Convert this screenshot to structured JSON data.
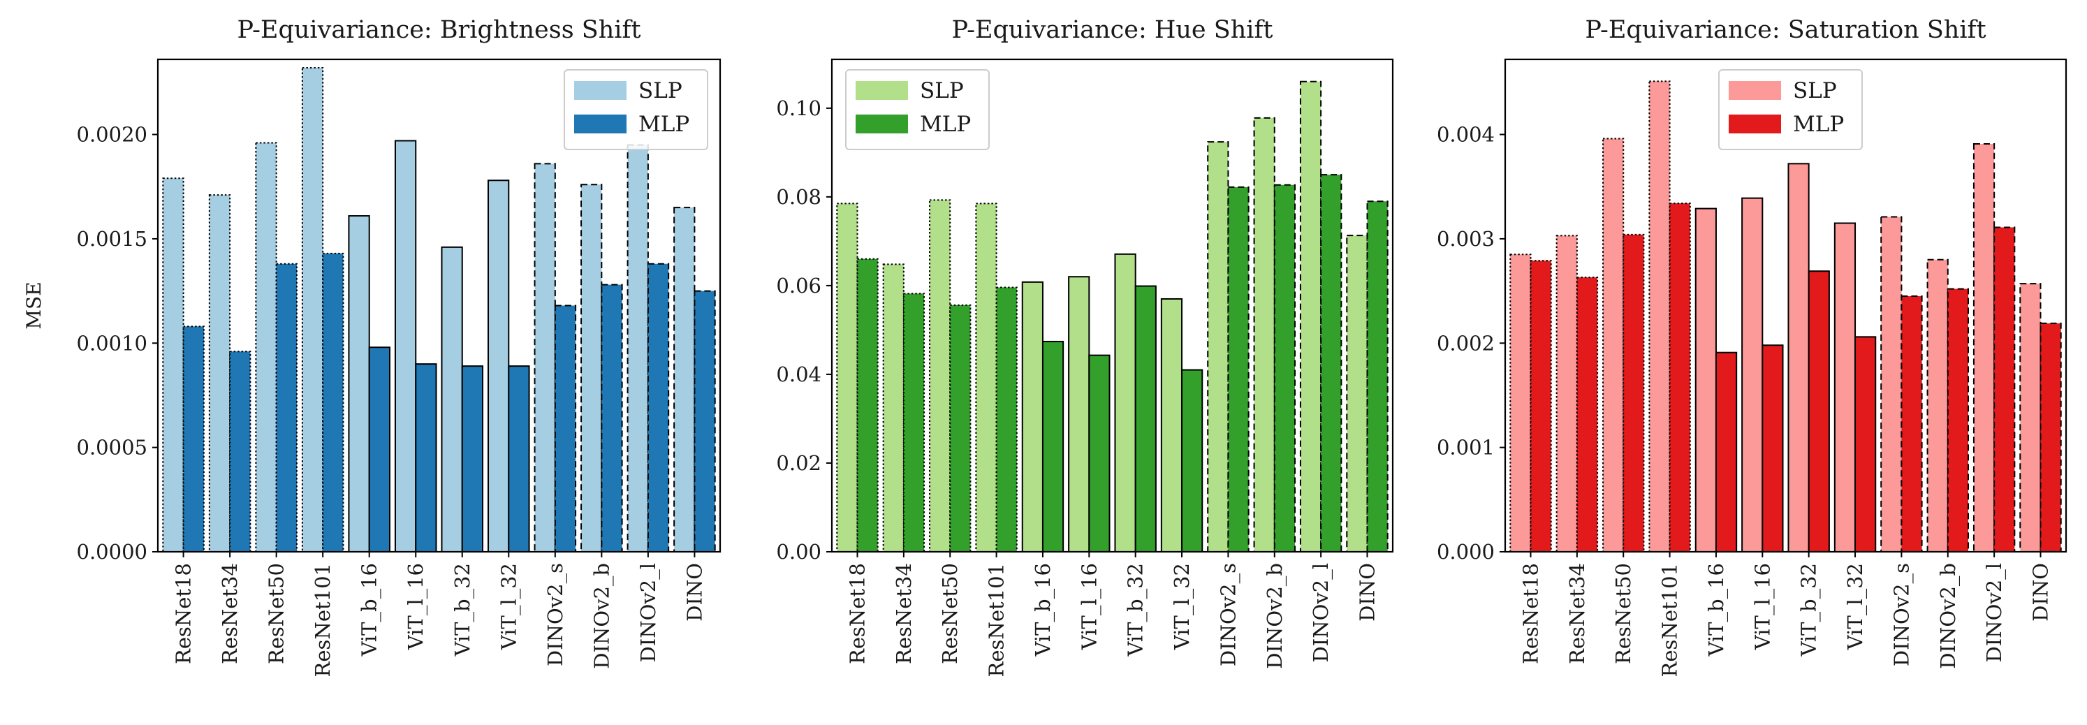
{
  "chart_data": [
    {
      "type": "bar",
      "title": "P-Equivariance: Brightness Shift",
      "ylabel": "MSE",
      "xlabel": "",
      "categories": [
        "ResNet18",
        "ResNet34",
        "ResNet50",
        "ResNet101",
        "ViT_b_16",
        "ViT_l_16",
        "ViT_b_32",
        "ViT_l_32",
        "DINOv2_s",
        "DINOv2_b",
        "DINOv2_l",
        "DINO"
      ],
      "edge_styles": [
        "dotted",
        "dotted",
        "dotted",
        "dotted",
        "solid",
        "solid",
        "solid",
        "solid",
        "dashed",
        "dashed",
        "dashed",
        "dashed"
      ],
      "ylim": [
        0,
        0.00236
      ],
      "yticks": [
        0,
        0.0005,
        0.001,
        0.0015,
        0.002
      ],
      "ytick_labels": [
        "0.0000",
        "0.0005",
        "0.0010",
        "0.0015",
        "0.0020"
      ],
      "legend_position": "upper right",
      "series": [
        {
          "name": "SLP",
          "color": "#a6cee3",
          "values": [
            0.00179,
            0.00171,
            0.00196,
            0.00232,
            0.00161,
            0.00197,
            0.00146,
            0.00178,
            0.00186,
            0.00176,
            0.00195,
            0.00165
          ]
        },
        {
          "name": "MLP",
          "color": "#1f78b4",
          "values": [
            0.00108,
            0.00096,
            0.00138,
            0.00143,
            0.00098,
            0.0009,
            0.00089,
            0.00089,
            0.00118,
            0.00128,
            0.00138,
            0.00125
          ]
        }
      ]
    },
    {
      "type": "bar",
      "title": "P-Equivariance: Hue Shift",
      "ylabel": "",
      "xlabel": "",
      "categories": [
        "ResNet18",
        "ResNet34",
        "ResNet50",
        "ResNet101",
        "ViT_b_16",
        "ViT_l_16",
        "ViT_b_32",
        "ViT_l_32",
        "DINOv2_s",
        "DINOv2_b",
        "DINOv2_l",
        "DINO"
      ],
      "edge_styles": [
        "dotted",
        "dotted",
        "dotted",
        "dotted",
        "solid",
        "solid",
        "solid",
        "solid",
        "dashed",
        "dashed",
        "dashed",
        "dashed"
      ],
      "ylim": [
        0,
        0.111
      ],
      "yticks": [
        0,
        0.02,
        0.04,
        0.06,
        0.08,
        0.1
      ],
      "ytick_labels": [
        "0.00",
        "0.02",
        "0.04",
        "0.06",
        "0.08",
        "0.10"
      ],
      "legend_position": "upper left",
      "series": [
        {
          "name": "SLP",
          "color": "#b2df8a",
          "values": [
            0.0785,
            0.0648,
            0.0793,
            0.0785,
            0.0608,
            0.062,
            0.0671,
            0.057,
            0.0924,
            0.0978,
            0.106,
            0.0713
          ]
        },
        {
          "name": "MLP",
          "color": "#33a02c",
          "values": [
            0.066,
            0.0582,
            0.0556,
            0.0596,
            0.0474,
            0.0443,
            0.0599,
            0.041,
            0.0822,
            0.0827,
            0.085,
            0.079
          ]
        }
      ]
    },
    {
      "type": "bar",
      "title": "P-Equivariance: Saturation Shift",
      "ylabel": "",
      "xlabel": "",
      "categories": [
        "ResNet18",
        "ResNet34",
        "ResNet50",
        "ResNet101",
        "ViT_b_16",
        "ViT_l_16",
        "ViT_b_32",
        "ViT_l_32",
        "DINOv2_s",
        "DINOv2_b",
        "DINOv2_l",
        "DINO"
      ],
      "edge_styles": [
        "dotted",
        "dotted",
        "dotted",
        "dotted",
        "solid",
        "solid",
        "solid",
        "solid",
        "dashed",
        "dashed",
        "dashed",
        "dashed"
      ],
      "ylim": [
        0,
        0.00472
      ],
      "yticks": [
        0,
        0.001,
        0.002,
        0.003,
        0.004
      ],
      "ytick_labels": [
        "0.000",
        "0.001",
        "0.002",
        "0.003",
        "0.004"
      ],
      "legend_position": "upper center",
      "series": [
        {
          "name": "SLP",
          "color": "#fb9a99",
          "values": [
            0.00285,
            0.00303,
            0.00396,
            0.00451,
            0.00329,
            0.00339,
            0.00372,
            0.00315,
            0.00321,
            0.0028,
            0.00391,
            0.00257
          ]
        },
        {
          "name": "MLP",
          "color": "#e31a1c",
          "values": [
            0.00279,
            0.00263,
            0.00304,
            0.00334,
            0.00191,
            0.00198,
            0.00269,
            0.00206,
            0.00245,
            0.00252,
            0.00311,
            0.00219
          ]
        }
      ]
    }
  ]
}
